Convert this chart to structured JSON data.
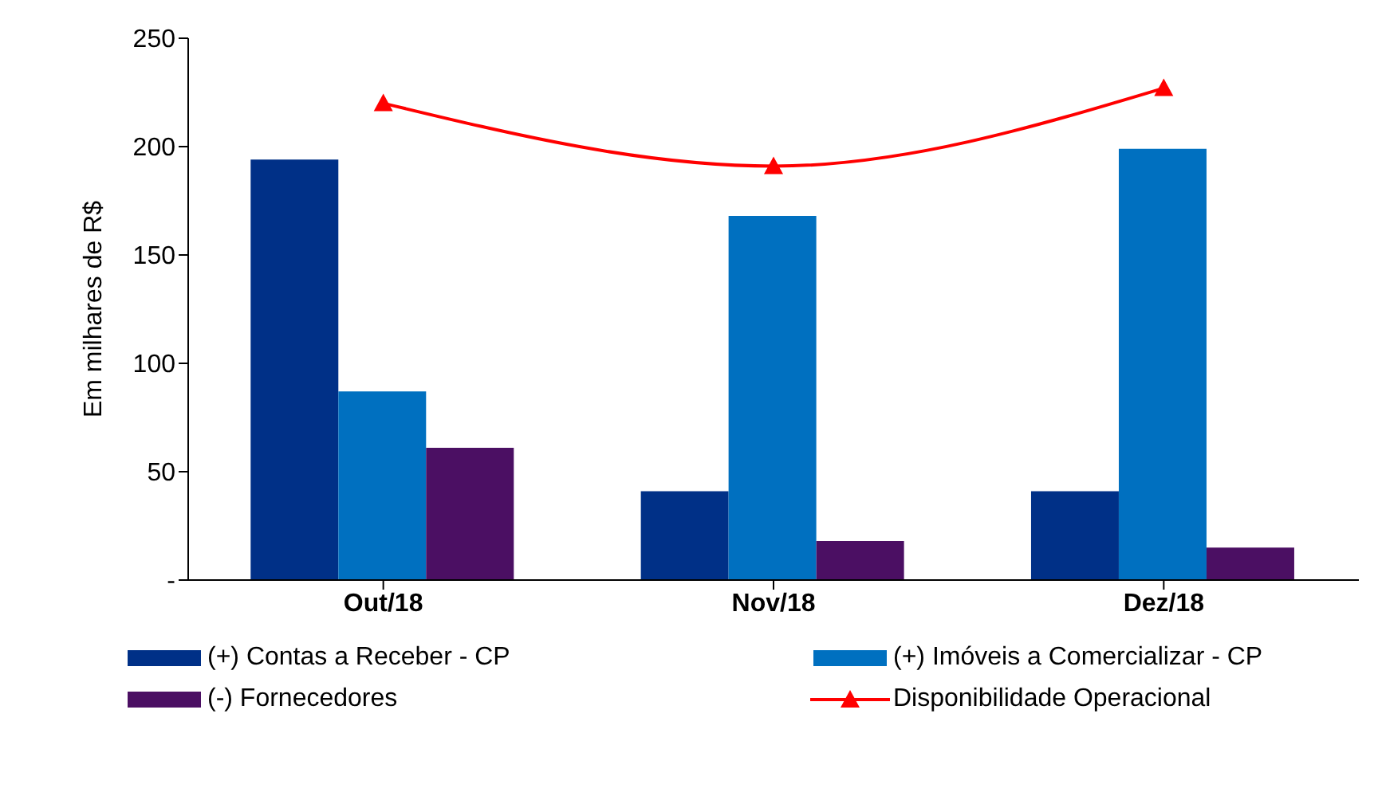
{
  "chart_data": {
    "type": "bar",
    "ylabel": "Em milhares de R$",
    "categories": [
      "Out/18",
      "Nov/18",
      "Dez/18"
    ],
    "series": [
      {
        "name": "(+) Contas a Receber - CP",
        "color": "#003087",
        "values": [
          194,
          41,
          41
        ]
      },
      {
        "name": "(+) Imóveis a Comercializar - CP",
        "color": "#0070c0",
        "values": [
          87,
          168,
          199
        ]
      },
      {
        "name": "(-) Fornecedores",
        "color": "#4b0f63",
        "values": [
          61,
          18,
          15
        ]
      },
      {
        "name": "Disponibilidade Operacional",
        "type": "line",
        "color": "#ff0000",
        "marker": "triangle",
        "values": [
          220,
          191,
          227
        ]
      }
    ],
    "ylim": [
      0,
      250
    ],
    "yticks": [
      {
        "value": 0,
        "label": "-"
      },
      50,
      100,
      150,
      200,
      250
    ],
    "grid": false,
    "legend": "bottom"
  }
}
